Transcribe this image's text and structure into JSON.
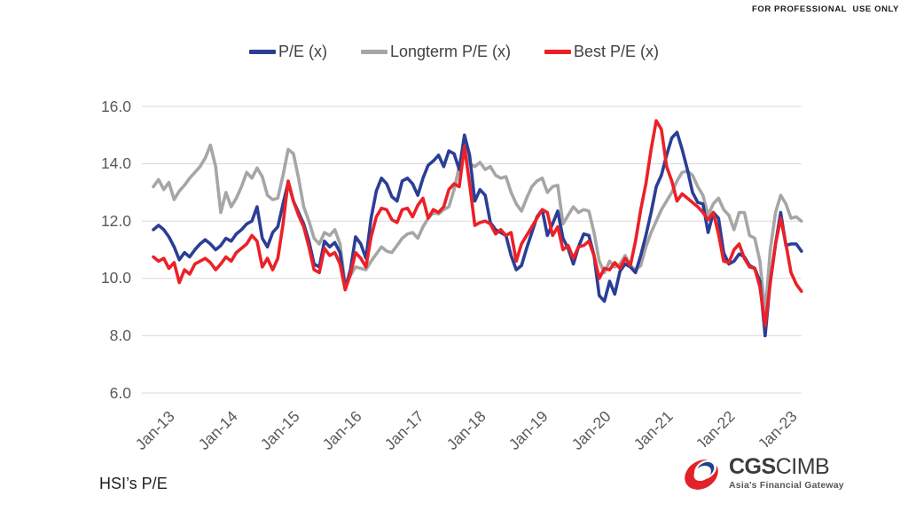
{
  "header": {
    "disclaimer": "FOR PROFESSIONAL  USE ONLY"
  },
  "legend": {
    "items": [
      {
        "label": "P/E (x)"
      },
      {
        "label": "Longterm P/E (x)"
      },
      {
        "label": "Best P/E (x)"
      }
    ]
  },
  "footnote": "HSI’s P/E",
  "logo": {
    "brand_bold": "CGS",
    "brand_regular": "CIMB",
    "tagline": "Asia's Financial Gateway",
    "mark_red": "#e32128",
    "mark_blue": "#20418e"
  },
  "chart_data": {
    "type": "line",
    "title": "HSI's P/E",
    "xlabel": "",
    "ylabel": "",
    "ylim": [
      6.0,
      16.0
    ],
    "grid": "horizontal",
    "legend_position": "top-center",
    "y_ticks": [
      16.0,
      14.0,
      12.0,
      10.0,
      8.0,
      6.0
    ],
    "x_ticks": [
      "Jan-13",
      "Jan-14",
      "Jan-15",
      "Jan-16",
      "Jan-17",
      "Jan-18",
      "Jan-19",
      "Jan-20",
      "Jan-21",
      "Jan-22",
      "Jan-23"
    ],
    "x_start": "Jan-13",
    "x_end": "Jun-23",
    "x_frequency": "monthly",
    "series": [
      {
        "name": "P/E (x)",
        "color": "#2b3e96",
        "values": [
          11.7,
          11.85,
          11.7,
          11.45,
          11.1,
          10.65,
          10.9,
          10.75,
          11.0,
          11.2,
          11.35,
          11.2,
          11.0,
          11.15,
          11.4,
          11.3,
          11.55,
          11.7,
          11.9,
          12.0,
          12.5,
          11.4,
          11.1,
          11.6,
          11.8,
          12.6,
          13.35,
          12.7,
          12.3,
          11.9,
          11.3,
          10.5,
          10.4,
          11.3,
          11.1,
          11.25,
          10.9,
          9.65,
          10.3,
          11.45,
          11.2,
          10.7,
          12.1,
          13.05,
          13.5,
          13.3,
          12.85,
          12.7,
          13.4,
          13.5,
          13.3,
          12.9,
          13.5,
          13.95,
          14.1,
          14.3,
          13.9,
          14.45,
          14.35,
          13.8,
          15.0,
          14.3,
          12.7,
          13.1,
          12.9,
          11.95,
          11.7,
          11.6,
          11.5,
          10.8,
          10.3,
          10.45,
          11.05,
          11.6,
          12.15,
          12.4,
          11.5,
          11.9,
          12.35,
          11.4,
          11.05,
          10.5,
          11.1,
          11.55,
          11.5,
          10.8,
          9.4,
          9.2,
          9.9,
          9.45,
          10.25,
          10.5,
          10.4,
          10.2,
          10.8,
          11.5,
          12.3,
          13.2,
          13.6,
          14.3,
          14.9,
          15.1,
          14.5,
          13.8,
          13.0,
          12.65,
          12.6,
          11.6,
          12.3,
          12.1,
          10.9,
          10.5,
          10.6,
          10.85,
          10.75,
          10.45,
          10.35,
          9.9,
          8.0,
          9.9,
          11.2,
          12.3,
          11.15,
          11.2,
          11.2,
          10.95
        ]
      },
      {
        "name": "Longterm P/E (x)",
        "color": "#a6a6a6",
        "values": [
          13.2,
          13.45,
          13.1,
          13.35,
          12.75,
          13.05,
          13.25,
          13.5,
          13.7,
          13.9,
          14.2,
          14.65,
          13.9,
          12.3,
          13.0,
          12.5,
          12.8,
          13.2,
          13.7,
          13.5,
          13.85,
          13.55,
          12.9,
          12.75,
          12.8,
          13.6,
          14.5,
          14.35,
          13.5,
          12.5,
          12.0,
          11.4,
          11.2,
          11.6,
          11.5,
          11.7,
          11.2,
          9.75,
          10.1,
          10.4,
          10.35,
          10.3,
          10.6,
          10.85,
          11.1,
          10.95,
          10.9,
          11.15,
          11.4,
          11.55,
          11.6,
          11.4,
          11.8,
          12.1,
          12.3,
          12.25,
          12.4,
          12.5,
          13.1,
          13.9,
          14.7,
          14.0,
          13.9,
          14.05,
          13.8,
          13.9,
          13.6,
          13.5,
          13.55,
          13.0,
          12.6,
          12.35,
          12.8,
          13.2,
          13.4,
          13.5,
          13.0,
          13.2,
          13.25,
          11.9,
          12.2,
          12.5,
          12.3,
          12.4,
          12.35,
          11.6,
          10.6,
          10.2,
          10.6,
          10.4,
          10.5,
          10.8,
          10.45,
          10.3,
          10.45,
          11.1,
          11.6,
          12.0,
          12.4,
          12.7,
          13.0,
          13.4,
          13.7,
          13.75,
          13.6,
          13.2,
          12.9,
          12.2,
          12.6,
          12.8,
          12.4,
          12.2,
          11.7,
          12.3,
          12.3,
          11.5,
          11.4,
          10.6,
          8.8,
          11.0,
          12.3,
          12.9,
          12.6,
          12.1,
          12.15,
          12.0
        ]
      },
      {
        "name": "Best P/E (x)",
        "color": "#ec2027",
        "values": [
          10.75,
          10.6,
          10.7,
          10.35,
          10.55,
          9.85,
          10.3,
          10.15,
          10.5,
          10.6,
          10.7,
          10.55,
          10.3,
          10.5,
          10.75,
          10.6,
          10.9,
          11.05,
          11.2,
          11.5,
          11.3,
          10.4,
          10.7,
          10.3,
          10.7,
          11.9,
          13.4,
          12.7,
          12.2,
          11.8,
          11.1,
          10.3,
          10.2,
          11.05,
          10.8,
          10.9,
          10.5,
          9.6,
          10.15,
          10.9,
          10.7,
          10.4,
          11.45,
          12.15,
          12.45,
          12.4,
          12.05,
          11.95,
          12.4,
          12.45,
          12.15,
          12.55,
          12.8,
          12.1,
          12.4,
          12.3,
          12.5,
          13.1,
          13.3,
          13.2,
          14.6,
          13.3,
          11.85,
          11.95,
          12.0,
          11.9,
          11.55,
          11.7,
          11.5,
          11.6,
          10.6,
          11.2,
          11.5,
          11.8,
          12.1,
          12.4,
          12.3,
          11.5,
          11.8,
          11.0,
          11.15,
          10.7,
          11.1,
          11.15,
          11.3,
          10.8,
          10.0,
          10.35,
          10.3,
          10.55,
          10.35,
          10.7,
          10.45,
          11.3,
          12.4,
          13.3,
          14.5,
          15.5,
          15.2,
          13.9,
          13.4,
          12.7,
          12.95,
          12.8,
          12.65,
          12.5,
          12.3,
          12.05,
          12.3,
          11.55,
          10.6,
          10.55,
          11.0,
          11.2,
          10.7,
          10.4,
          10.35,
          9.7,
          8.35,
          9.85,
          11.2,
          12.1,
          11.2,
          10.2,
          9.8,
          9.55
        ]
      }
    ]
  }
}
